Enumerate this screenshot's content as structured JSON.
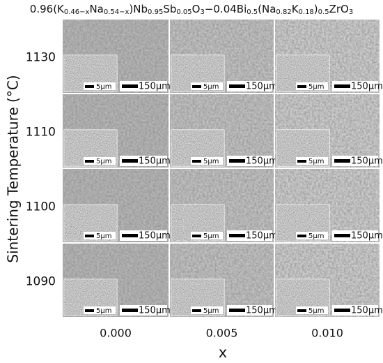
{
  "title_segments": [
    "0.96(K",
    "0.46−x",
    "Na",
    "0.54−x",
    ")Nb",
    "0.95",
    "Sb",
    "0.05",
    "O",
    "3",
    "−0.04Bi",
    "0.5",
    "(Na",
    "0.82",
    "K",
    "0.18",
    ")",
    "0.5",
    "ZrO",
    "3"
  ],
  "y_label": "Sintering Temperature (°C)",
  "rows": [
    "1130",
    "1110",
    "1100",
    "1090"
  ],
  "columns": [
    "0.000",
    "0.005",
    "0.010"
  ],
  "x_label": "x",
  "inset_scale": "5μm",
  "main_scale": "150μm"
}
